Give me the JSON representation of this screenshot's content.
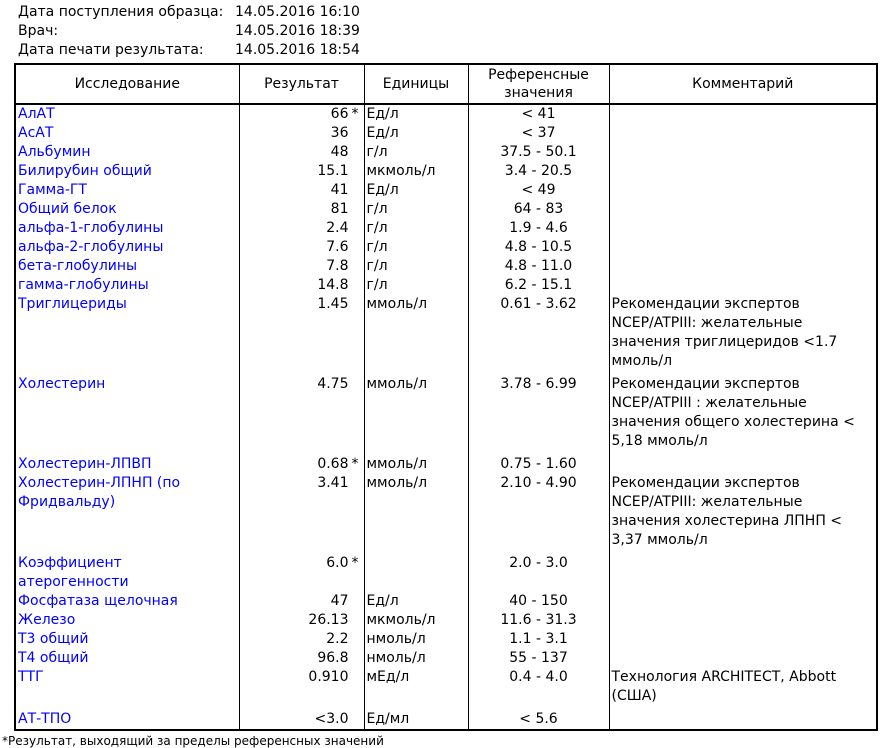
{
  "meta": {
    "rows": [
      {
        "label": "Дата поступления образца:",
        "value": "14.05.2016 16:10"
      },
      {
        "label": "Врач:",
        "value": "14.05.2016 18:39"
      },
      {
        "label": "Дата печати результата:",
        "value": "14.05.2016 18:54"
      }
    ]
  },
  "table": {
    "headers": [
      "Исследование",
      "Результат",
      "Единицы",
      "Референсные значения",
      "Комментарий"
    ],
    "rows": [
      {
        "name": "АлАТ",
        "result": "66",
        "flag": "*",
        "units": "Ед/л",
        "reference": "< 41",
        "comment": ""
      },
      {
        "name": "АсАТ",
        "result": "36",
        "flag": "",
        "units": "Ед/л",
        "reference": "< 37",
        "comment": ""
      },
      {
        "name": "Альбумин",
        "result": "48",
        "flag": "",
        "units": "г/л",
        "reference": "37.5 - 50.1",
        "comment": ""
      },
      {
        "name": "Билирубин общий",
        "result": "15.1",
        "flag": "",
        "units": "мкмоль/л",
        "reference": "3.4 - 20.5",
        "comment": ""
      },
      {
        "name": "Гамма-ГТ",
        "result": "41",
        "flag": "",
        "units": "Ед/л",
        "reference": "< 49",
        "comment": ""
      },
      {
        "name": "Общий белок",
        "result": "81",
        "flag": "",
        "units": "г/л",
        "reference": "64 - 83",
        "comment": ""
      },
      {
        "name": "альфа-1-глобулины",
        "result": "2.4",
        "flag": "",
        "units": "г/л",
        "reference": "1.9 - 4.6",
        "comment": ""
      },
      {
        "name": "альфа-2-глобулины",
        "result": "7.6",
        "flag": "",
        "units": "г/л",
        "reference": "4.8 - 10.5",
        "comment": ""
      },
      {
        "name": "бета-глобулины",
        "result": "7.8",
        "flag": "",
        "units": "г/л",
        "reference": "4.8 - 11.0",
        "comment": ""
      },
      {
        "name": "гамма-глобулины",
        "result": "14.8",
        "flag": "",
        "units": "г/л",
        "reference": "6.2 - 15.1",
        "comment": ""
      },
      {
        "name": "Триглицериды",
        "result": "1.45",
        "flag": "",
        "units": "ммоль/л",
        "reference": "0.61 - 3.62",
        "comment": "Рекомендации экспертов NCEP/ATPIII: желательные значения триглицеридов <1.7 ммоль/л"
      },
      {
        "name": "Холестерин",
        "result": "4.75",
        "flag": "",
        "units": "ммоль/л",
        "reference": "3.78 - 6.99",
        "comment": "Рекомендации экспертов NCEP/ATPIII : желательные значения общего холестерина < 5,18 ммоль/л"
      },
      {
        "name": "Холестерин-ЛПВП",
        "result": "0.68",
        "flag": "*",
        "units": "ммоль/л",
        "reference": "0.75 - 1.60",
        "comment": ""
      },
      {
        "name": "Холестерин-ЛПНП (по Фридвальду)",
        "result": "3.41",
        "flag": "",
        "units": "ммоль/л",
        "reference": "2.10 - 4.90",
        "comment": "Рекомендации экспертов NCEP/ATPIII: желательные значения холестерина ЛПНП < 3,37 ммоль/л"
      },
      {
        "name": "Коэффициент атерогенности",
        "result": "6.0",
        "flag": "*",
        "units": "",
        "reference": "2.0 - 3.0",
        "comment": ""
      },
      {
        "name": "Фосфатаза щелочная",
        "result": "47",
        "flag": "",
        "units": "Ед/л",
        "reference": "40 - 150",
        "comment": ""
      },
      {
        "name": "Железо",
        "result": "26.13",
        "flag": "",
        "units": "мкмоль/л",
        "reference": "11.6 - 31.3",
        "comment": ""
      },
      {
        "name": "Т3 общий",
        "result": "2.2",
        "flag": "",
        "units": "нмоль/л",
        "reference": "1.1 - 3.1",
        "comment": ""
      },
      {
        "name": "Т4 общий",
        "result": "96.8",
        "flag": "",
        "units": "нмоль/л",
        "reference": "55 - 137",
        "comment": ""
      },
      {
        "name": "ТТГ",
        "result": "0.910",
        "flag": "",
        "units": "мЕд/л",
        "reference": "0.4 - 4.0",
        "comment": "Технология ARCHITECT, Abbott (США)"
      },
      {
        "name": "АТ-ТПО",
        "result": "<3.0",
        "flag": "",
        "units": "Ед/мл",
        "reference": "< 5.6",
        "comment": ""
      }
    ]
  },
  "footnote": "*Результат, выходящий за пределы референсных значений",
  "colors": {
    "test_name": "#0000ff",
    "text": "#000000",
    "border": "#000000",
    "background": "#ffffff"
  }
}
